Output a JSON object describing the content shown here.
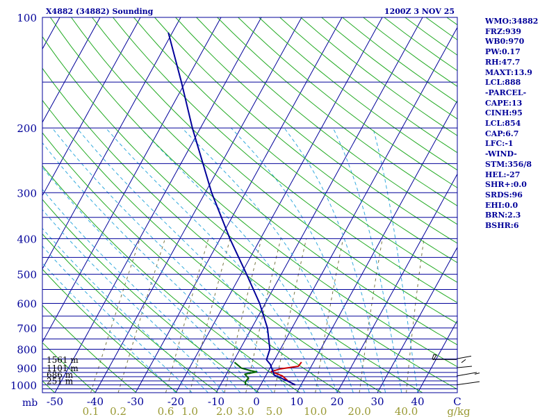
{
  "chart_data": {
    "type": "line",
    "title": "X4882 (34882) Sounding",
    "time_label": "1200Z  3 NOV 25",
    "y_scale": "log-pressure",
    "x_axis_unit_label": "mb",
    "x_ticks": [
      -50,
      -40,
      -30,
      -20,
      -10,
      0,
      10,
      20,
      30,
      40
    ],
    "x_tick_labels": [
      "-50",
      "-40",
      "-30",
      "-20",
      "-10",
      "0",
      "10",
      "20",
      "30",
      "40"
    ],
    "x_last_tick_label": "C",
    "xlim": [
      -50,
      50
    ],
    "pressure_ticks": [
      100,
      200,
      300,
      400,
      500,
      600,
      700,
      800,
      900,
      1000
    ],
    "pressure_tick_labels": [
      "100",
      "200",
      "300",
      "400",
      "500",
      "600",
      "700",
      "800",
      "900",
      "1000"
    ],
    "ylim": [
      100,
      1050
    ],
    "mixing_ratio_labels": [
      "0.1",
      "0.2",
      "0.6",
      "1.0",
      "2.0",
      "3.0",
      "5.0",
      "10.0",
      "20.0",
      "40.0"
    ],
    "mixing_ratio_unit": "g/kg",
    "height_labels": [
      {
        "pressure": 852,
        "text": "1561 m"
      },
      {
        "pressure": 897,
        "text": "1101 m"
      },
      {
        "pressure": 935,
        "text": "686 m"
      },
      {
        "pressure": 972,
        "text": "251 m"
      }
    ],
    "series": [
      {
        "kind": "temperature",
        "color": "#cc0000",
        "points": [
          [
            8.4,
            1000
          ],
          [
            6.2,
            975
          ],
          [
            4.1,
            945
          ],
          [
            0.8,
            920
          ],
          [
            2.6,
            905
          ],
          [
            6.8,
            890
          ],
          [
            7.0,
            867
          ]
        ]
      },
      {
        "kind": "dewpoint",
        "color": "#006600",
        "points": [
          [
            -3.8,
            1000
          ],
          [
            -4.2,
            982
          ],
          [
            -4.0,
            958
          ],
          [
            -5.4,
            935
          ],
          [
            -2.8,
            922
          ],
          [
            -4.4,
            915
          ],
          [
            -7.1,
            900
          ],
          [
            -9.6,
            868
          ]
        ]
      },
      {
        "kind": "parcel",
        "color": "#000099",
        "points": [
          [
            8.6,
            1000
          ],
          [
            6.0,
            975
          ],
          [
            2.0,
            940
          ],
          [
            -0.4,
            880
          ],
          [
            -2.0,
            854
          ],
          [
            -2.6,
            800
          ],
          [
            -6.1,
            700
          ],
          [
            -11.4,
            600
          ],
          [
            -18.6,
            500
          ],
          [
            -27.6,
            400
          ],
          [
            -38.4,
            300
          ],
          [
            -52.0,
            200
          ],
          [
            -61.0,
            150
          ],
          [
            -71.0,
            110
          ]
        ]
      }
    ],
    "wind_profile": "wind barbs at 849, 898, 946 and 1000 mb with a hodograph trace",
    "grid": true
  },
  "indices": [
    "WMO:34882",
    "FRZ:939",
    "WB0:970",
    "PW:0.17",
    "RH:47.7",
    "MAXT:13.9",
    "LCL:888",
    "-PARCEL-",
    "CAPE:13",
    "CINH:95",
    "LCL:854",
    "CAP:6.7",
    "LFC:-1",
    "-WIND-",
    "STM:356/8",
    "HEL:-27",
    "SHR+:0.0",
    "SRDS:96",
    "EHI:0.0",
    "BRN:2.3",
    "BSHR:6"
  ],
  "colors": {
    "frame": "#000099",
    "isobar": "#000099",
    "isotherm": "#000099",
    "dry_adiabat": "#22aa22",
    "moist_adiabat": "#33aadd",
    "mixing_ratio": "#777744",
    "temperature": "#cc0000",
    "dewpoint": "#006600",
    "parcel": "#000099",
    "mixing_label": "#999933"
  }
}
